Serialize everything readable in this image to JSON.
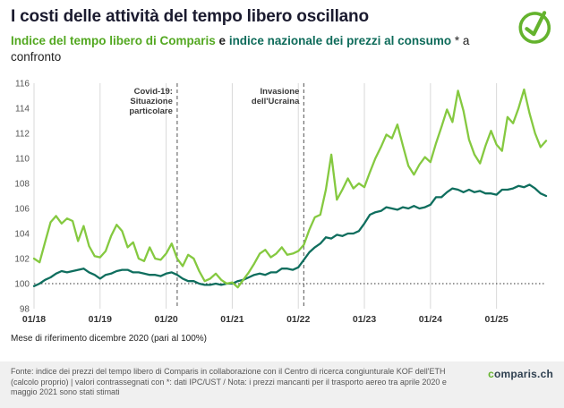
{
  "header": {
    "title": "I costi delle attività del tempo libero oscillano",
    "subtitle": {
      "part1": "Indice del tempo libero di Comparis",
      "sep": " e ",
      "part2": "indice nazionale dei prezzi al consumo",
      "part3": " * a confronto"
    }
  },
  "colors": {
    "brand_green": "#64b32d",
    "line_green": "#85c940",
    "dark_teal": "#0f6e5e",
    "title_text": "#1b1b2f",
    "footer_background": "#f0f0f0"
  },
  "chart_data": {
    "type": "line",
    "frequency": "monthly",
    "x_start": "2018-01",
    "x_end": "2025-10",
    "ylim": [
      98,
      116
    ],
    "yticks": [
      98,
      100,
      102,
      104,
      106,
      108,
      110,
      112,
      114,
      116
    ],
    "xticks": [
      {
        "index": 0,
        "label": "01/18"
      },
      {
        "index": 12,
        "label": "01/19"
      },
      {
        "index": 24,
        "label": "01/20"
      },
      {
        "index": 36,
        "label": "01/21"
      },
      {
        "index": 48,
        "label": "01/22"
      },
      {
        "index": 60,
        "label": "01/23"
      },
      {
        "index": 72,
        "label": "01/24"
      },
      {
        "index": 84,
        "label": "01/25"
      }
    ],
    "baseline": 100,
    "xlabel": "",
    "ylabel": "",
    "events": [
      {
        "index": 26,
        "label": "Covid-19: Situazione particolare",
        "lines": [
          "Covid-19:",
          "Situazione",
          "particolare"
        ]
      },
      {
        "index": 49,
        "label": "Invasione dell'Ucraina",
        "lines": [
          "Invasione",
          "dell'Ucraina"
        ]
      }
    ],
    "series": [
      {
        "id": "comparis-leisure-index",
        "name": "Indice del tempo libero di Comparis",
        "color": "#85c940",
        "values": [
          102.0,
          101.7,
          103.3,
          104.9,
          105.4,
          104.8,
          105.2,
          105.0,
          103.4,
          104.6,
          103.0,
          102.2,
          102.1,
          102.6,
          103.8,
          104.7,
          104.2,
          102.9,
          103.3,
          102.0,
          101.8,
          102.9,
          102.0,
          101.9,
          102.4,
          103.2,
          102.0,
          101.4,
          102.3,
          102.0,
          101.0,
          100.2,
          100.4,
          100.8,
          100.3,
          100.0,
          100.1,
          99.7,
          100.3,
          100.9,
          101.6,
          102.4,
          102.7,
          102.1,
          102.4,
          102.9,
          102.3,
          102.4,
          102.6,
          103.1,
          104.3,
          105.3,
          105.5,
          107.5,
          110.3,
          106.7,
          107.5,
          108.4,
          107.6,
          108.0,
          107.7,
          108.9,
          110.0,
          110.9,
          111.9,
          111.6,
          112.7,
          111.0,
          109.4,
          108.7,
          109.5,
          110.1,
          109.7,
          111.2,
          112.5,
          113.9,
          112.9,
          115.4,
          113.8,
          111.5,
          110.3,
          109.6,
          111.0,
          112.2,
          111.1,
          110.6,
          113.3,
          112.8,
          114.0,
          115.5,
          113.6,
          112.0,
          110.9,
          111.4
        ]
      },
      {
        "id": "national-cpi",
        "name": "Indice nazionale dei prezzi al consumo",
        "color": "#0f6e5e",
        "values": [
          99.8,
          100.0,
          100.3,
          100.5,
          100.8,
          101.0,
          100.9,
          101.0,
          101.1,
          101.2,
          100.9,
          100.7,
          100.4,
          100.7,
          100.8,
          101.0,
          101.1,
          101.1,
          100.9,
          100.9,
          100.8,
          100.7,
          100.7,
          100.6,
          100.8,
          100.9,
          100.7,
          100.4,
          100.2,
          100.2,
          100.0,
          99.9,
          99.9,
          100.0,
          99.9,
          100.0,
          100.0,
          100.2,
          100.3,
          100.5,
          100.7,
          100.8,
          100.7,
          100.9,
          100.9,
          101.2,
          101.2,
          101.1,
          101.3,
          101.9,
          102.5,
          102.9,
          103.2,
          103.7,
          103.6,
          103.9,
          103.8,
          104.0,
          104.0,
          104.2,
          104.8,
          105.5,
          105.7,
          105.8,
          106.1,
          106.0,
          105.9,
          106.1,
          106.0,
          106.2,
          106.0,
          106.1,
          106.3,
          106.9,
          106.9,
          107.3,
          107.6,
          107.5,
          107.3,
          107.5,
          107.3,
          107.4,
          107.2,
          107.2,
          107.1,
          107.5,
          107.5,
          107.6,
          107.8,
          107.7,
          107.9,
          107.6,
          107.2,
          107.0
        ]
      }
    ]
  },
  "footer": {
    "reference_note": "Mese di riferimento dicembre 2020 (pari al 100%)",
    "source": "Fonte: indice dei prezzi del tempo libero di Comparis in collaborazione con il Centro di ricerca congiunturale KOF dell'ETH (calcolo proprio) | valori contrassegnati con *: dati IPC/UST / Nota: i prezzi mancanti per il trasporto aereo tra aprile 2020 e maggio 2021 sono stati stimati",
    "logo": {
      "part1": "c",
      "part2": "omparis.ch"
    }
  }
}
